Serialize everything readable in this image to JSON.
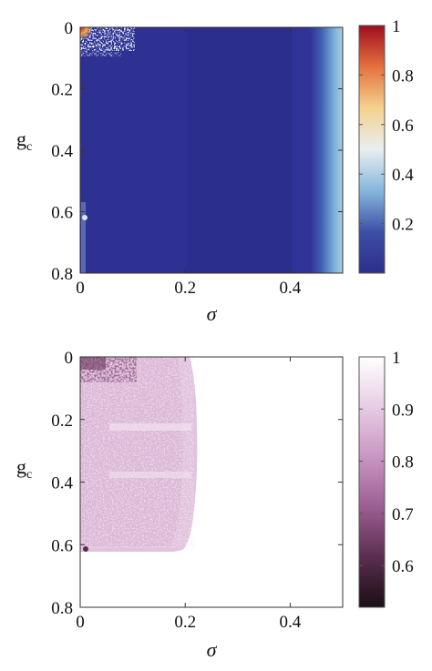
{
  "chart_data": [
    {
      "type": "heatmap",
      "xlabel": "σ",
      "ylabel": "g",
      "ylabel_sub": "c",
      "xlim": [
        0,
        0.5
      ],
      "ylim": [
        0,
        0.8
      ],
      "y_inverted": true,
      "xticks": [
        0,
        0.2,
        0.4
      ],
      "xtick_labels": [
        "0",
        "0.2",
        "0.4"
      ],
      "yticks": [
        0,
        0.2,
        0.4,
        0.6,
        0.8
      ],
      "ytick_labels": [
        "0",
        "0.2",
        "0.4",
        "0.6",
        "0.8"
      ],
      "colorbar": {
        "range": [
          0,
          1
        ],
        "ticks": [
          1,
          0.8,
          0.6,
          0.4,
          0.2
        ],
        "tick_labels": [
          "1",
          "0.8",
          "0.6",
          "0.4",
          "0.2"
        ],
        "colormap": "rdylbu_reversed",
        "colors": [
          "#2c2e8c",
          "#3d4fa6",
          "#86b7dc",
          "#e8eef0",
          "#f5d28e",
          "#e4713f",
          "#9e0d1e"
        ]
      },
      "regions": [
        {
          "desc": "background",
          "sigma": [
            0,
            0.46
          ],
          "g": [
            0,
            0.8
          ],
          "value": 0.02
        },
        {
          "desc": "rising right edge",
          "sigma": [
            0.46,
            0.5
          ],
          "g": [
            0,
            0.8
          ],
          "value_from": 0.05,
          "value_to": 0.35
        },
        {
          "desc": "speckled corner",
          "sigma": [
            0,
            0.1
          ],
          "g": [
            0,
            0.08
          ],
          "value": 0.3
        },
        {
          "desc": "red corner",
          "sigma": [
            0,
            0.005
          ],
          "g": [
            0,
            0.02
          ],
          "value": 0.95
        }
      ]
    },
    {
      "type": "heatmap",
      "xlabel": "σ",
      "ylabel": "g",
      "ylabel_sub": "c",
      "xlim": [
        0,
        0.5
      ],
      "ylim": [
        0,
        0.8
      ],
      "y_inverted": true,
      "xticks": [
        0,
        0.2,
        0.4
      ],
      "xtick_labels": [
        "0",
        "0.2",
        "0.4"
      ],
      "yticks": [
        0,
        0.2,
        0.4,
        0.6,
        0.8
      ],
      "ytick_labels": [
        "0",
        "0.2",
        "0.4",
        "0.6",
        "0.8"
      ],
      "colorbar": {
        "range": [
          0.52,
          1
        ],
        "ticks": [
          1,
          0.9,
          0.8,
          0.7,
          0.6
        ],
        "tick_labels": [
          "1",
          "0.9",
          "0.8",
          "0.7",
          "0.6"
        ],
        "colormap": "purple_white",
        "colors": [
          "#1a0f15",
          "#5a2d50",
          "#9b5e92",
          "#c896c2",
          "#e6cde4",
          "#ffffff"
        ]
      },
      "regions": [
        {
          "desc": "background",
          "sigma": [
            0,
            0.5
          ],
          "g": [
            0,
            0.8
          ],
          "value": 1.0
        },
        {
          "desc": "pink region",
          "sigma": [
            0,
            0.21
          ],
          "g": [
            0,
            0.62
          ],
          "value": 0.88
        },
        {
          "desc": "dark corner",
          "sigma": [
            0,
            0.07
          ],
          "g": [
            0,
            0.03
          ],
          "value": 0.72
        }
      ]
    }
  ]
}
